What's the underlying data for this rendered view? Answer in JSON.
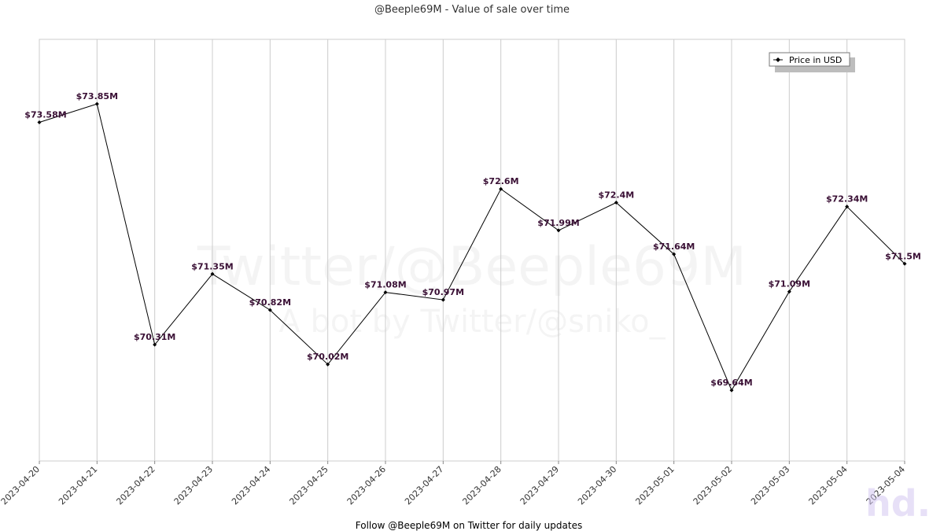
{
  "title": "@Beeple69M - Value of sale over time",
  "footer": "Follow @Beeple69M on Twitter for daily updates",
  "watermark": {
    "line1": "Twitter/@Beeple69M",
    "line2": "A bot by Twitter/@sniko_"
  },
  "logo": "hd.",
  "chart_data": {
    "type": "line",
    "title": "@Beeple69M - Value of sale over time",
    "xlabel": "",
    "ylabel": "",
    "x": [
      "2023-04-20",
      "2023-04-21",
      "2023-04-22",
      "2023-04-23",
      "2023-04-24",
      "2023-04-25",
      "2023-04-26",
      "2023-04-27",
      "2023-04-28",
      "2023-04-29",
      "2023-04-30",
      "2023-05-01",
      "2023-05-02",
      "2023-05-03",
      "2023-05-04",
      "2023-05-04"
    ],
    "series": [
      {
        "name": "Price in USD",
        "values": [
          73.58,
          73.85,
          70.31,
          71.35,
          70.82,
          70.02,
          71.08,
          70.97,
          72.6,
          71.99,
          72.4,
          71.64,
          69.64,
          71.09,
          72.34,
          71.5
        ],
        "labels": [
          "$73.58M",
          "$73.85M",
          "$70.31M",
          "$71.35M",
          "$70.82M",
          "$70.02M",
          "$71.08M",
          "$70.97M",
          "$72.6M",
          "$71.99M",
          "$72.4M",
          "$71.64M",
          "$69.64M",
          "$71.09M",
          "$72.34M",
          "$71.5M"
        ],
        "color": "#000000",
        "label_color": "#3a1035"
      }
    ],
    "ylim": [
      68.6,
      74.8
    ],
    "y_ticks_shown": false,
    "grid": "vertical",
    "grid_color": "#cccccc",
    "legend": "top-right"
  }
}
